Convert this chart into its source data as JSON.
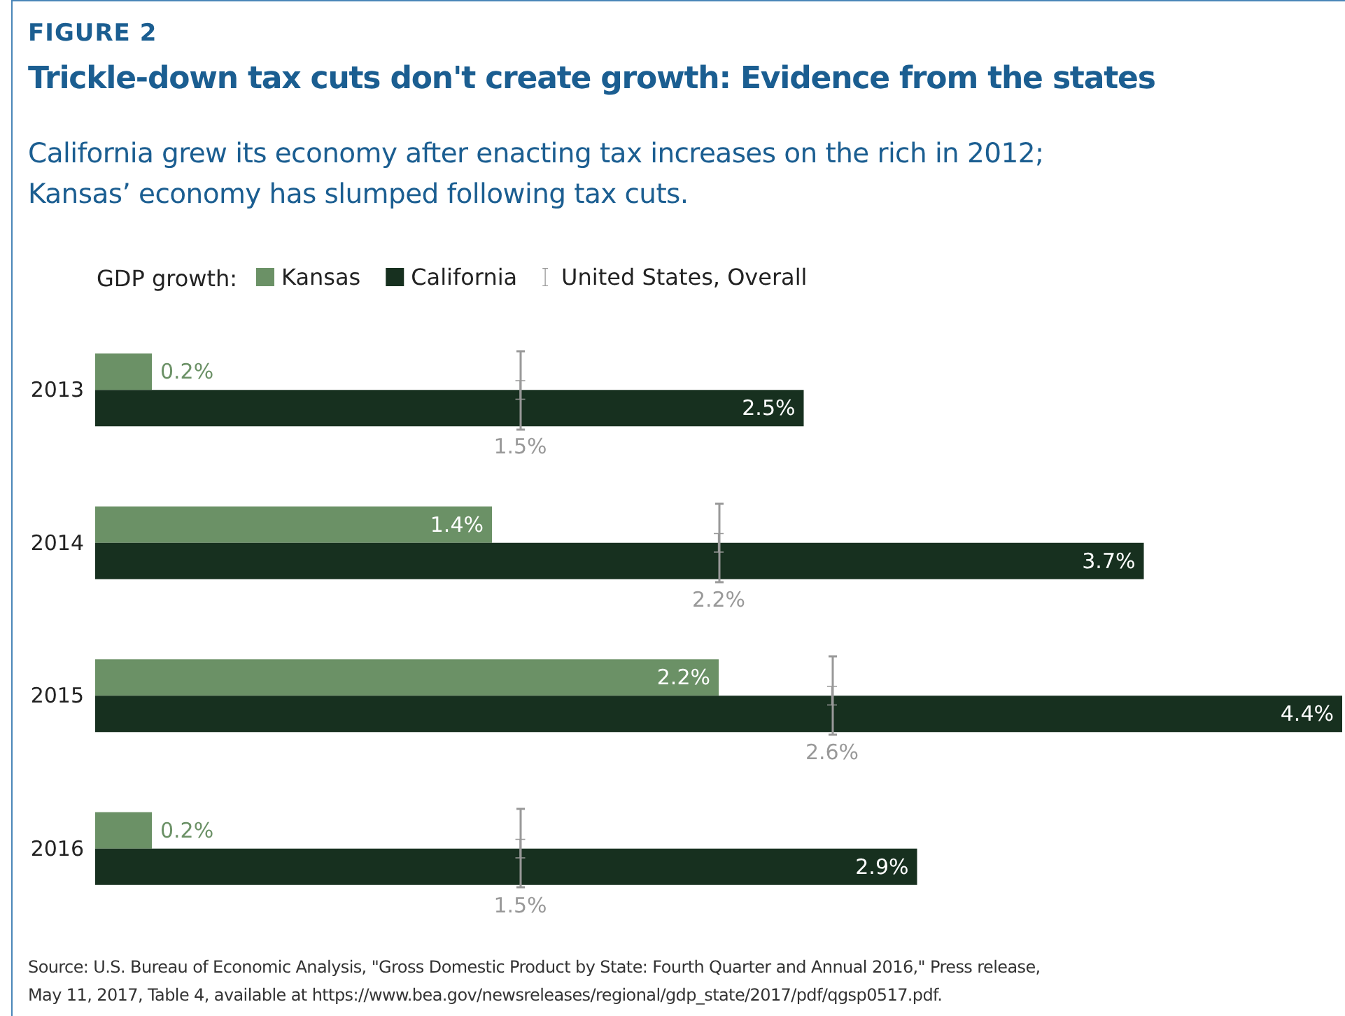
{
  "chart_data": {
    "type": "bar",
    "orientation": "horizontal",
    "title": "Trickle-down tax cuts don't create growth: Evidence from the states",
    "subtitle": "California grew its economy after enacting tax increases on the rich in 2012;\nKansas’ economy has slumped following tax cuts.",
    "legend_title": "GDP growth:",
    "legend": "top left",
    "categories": [
      "2013",
      "2014",
      "2015",
      "2016"
    ],
    "series": [
      {
        "name": "Kansas",
        "color": "#6b9166",
        "values": [
          0.2,
          1.4,
          2.2,
          0.2
        ],
        "value_labels": [
          "0.2%",
          "1.4%",
          "2.2%",
          "0.2%"
        ]
      },
      {
        "name": "California",
        "color": "#17301f",
        "values": [
          2.5,
          3.7,
          4.4,
          2.9
        ],
        "value_labels": [
          "2.5%",
          "3.7%",
          "4.4%",
          "2.9%"
        ]
      },
      {
        "name": "United States, Overall",
        "type": "scatter",
        "color": "#999999",
        "values": [
          1.5,
          2.2,
          2.6,
          1.5
        ],
        "value_labels": [
          "1.5%",
          "2.2%",
          "2.6%",
          "1.5%"
        ]
      }
    ],
    "annotations": [
      "FIGURE 2",
      "Source: U.S. Bureau of Economic Analysis, \"Gross Domestic Product by State: Fourth Quarter and Annual 2016,\" Press release,\nMay 11, 2017, Table 4, available at https://www.bea.gov/newsreleases/regional/gdp_state/2017/pdf/qgsp0517.pdf."
    ]
  }
}
